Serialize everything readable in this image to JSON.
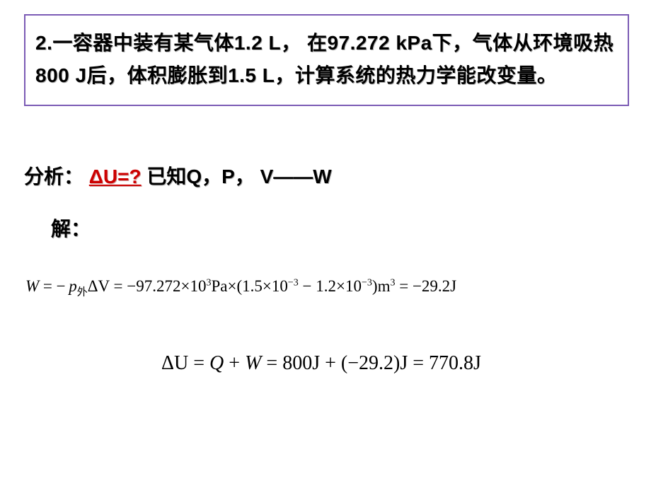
{
  "problem": {
    "text": "2.一容器中装有某气体1.2 L， 在97.272 kPa下，气体从环境吸热800 J后，体积膨胀到1.5 L，计算系统的热力学能改变量。"
  },
  "analysis": {
    "prefix": "分析： ",
    "deltaU": "ΔU=?",
    "suffix": " 已知Q，P， V——W"
  },
  "jie": "解：",
  "equation1": {
    "W": "W",
    "eq": " = ",
    "neg": "−",
    "p": "p",
    "psub": "外",
    "dV": "ΔV",
    "num1": "97.272",
    "times": "×",
    "ten": "10",
    "exp3": "3",
    "Pa": "Pa",
    "lp": "(",
    "num2": "1.5",
    "expn3": "−3",
    "minus": " − ",
    "num3": "1.2",
    "rp": ")",
    "m": "m",
    "result": "−29.2",
    "J": "J"
  },
  "equation2": {
    "dU": "ΔU",
    "eq": " = ",
    "Q": "Q",
    "plus": " + ",
    "W": "W",
    "v1": "800",
    "J": "J",
    "v2": "(−29.2)",
    "res": "770.8"
  }
}
